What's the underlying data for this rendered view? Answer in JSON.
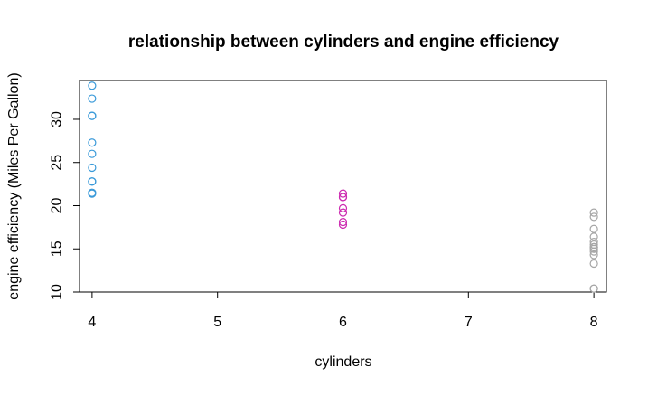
{
  "chart_data": {
    "type": "scatter",
    "title": "relationship between cylinders and engine efficiency",
    "xlabel": "cylinders",
    "ylabel": "engine efficiency (Miles Per Gallon)",
    "xlim": [
      3.9,
      8.1
    ],
    "ylim": [
      10,
      34.5
    ],
    "x_ticks": [
      4,
      5,
      6,
      7,
      8
    ],
    "y_ticks": [
      10,
      15,
      20,
      25,
      30
    ],
    "grid": false,
    "legend": "none",
    "marker": "open-circle",
    "series": [
      {
        "color": "#3a9ad9",
        "points": [
          {
            "x": 4,
            "y": 33.9
          },
          {
            "x": 4,
            "y": 32.4
          },
          {
            "x": 4,
            "y": 30.4
          },
          {
            "x": 4,
            "y": 30.4
          },
          {
            "x": 4,
            "y": 27.3
          },
          {
            "x": 4,
            "y": 26.0
          },
          {
            "x": 4,
            "y": 24.4
          },
          {
            "x": 4,
            "y": 22.8
          },
          {
            "x": 4,
            "y": 22.8
          },
          {
            "x": 4,
            "y": 21.5
          },
          {
            "x": 4,
            "y": 21.4
          }
        ]
      },
      {
        "color": "#cc29b0",
        "points": [
          {
            "x": 6,
            "y": 21.4
          },
          {
            "x": 6,
            "y": 21.0
          },
          {
            "x": 6,
            "y": 21.0
          },
          {
            "x": 6,
            "y": 19.7
          },
          {
            "x": 6,
            "y": 19.2
          },
          {
            "x": 6,
            "y": 18.1
          },
          {
            "x": 6,
            "y": 17.8
          }
        ]
      },
      {
        "color": "#a6a6a6",
        "points": [
          {
            "x": 8,
            "y": 19.2
          },
          {
            "x": 8,
            "y": 18.7
          },
          {
            "x": 8,
            "y": 17.3
          },
          {
            "x": 8,
            "y": 16.4
          },
          {
            "x": 8,
            "y": 15.8
          },
          {
            "x": 8,
            "y": 15.5
          },
          {
            "x": 8,
            "y": 15.2
          },
          {
            "x": 8,
            "y": 15.2
          },
          {
            "x": 8,
            "y": 15.0
          },
          {
            "x": 8,
            "y": 14.7
          },
          {
            "x": 8,
            "y": 14.3
          },
          {
            "x": 8,
            "y": 13.3
          },
          {
            "x": 8,
            "y": 10.4
          },
          {
            "x": 8,
            "y": 10.4
          }
        ]
      }
    ]
  }
}
